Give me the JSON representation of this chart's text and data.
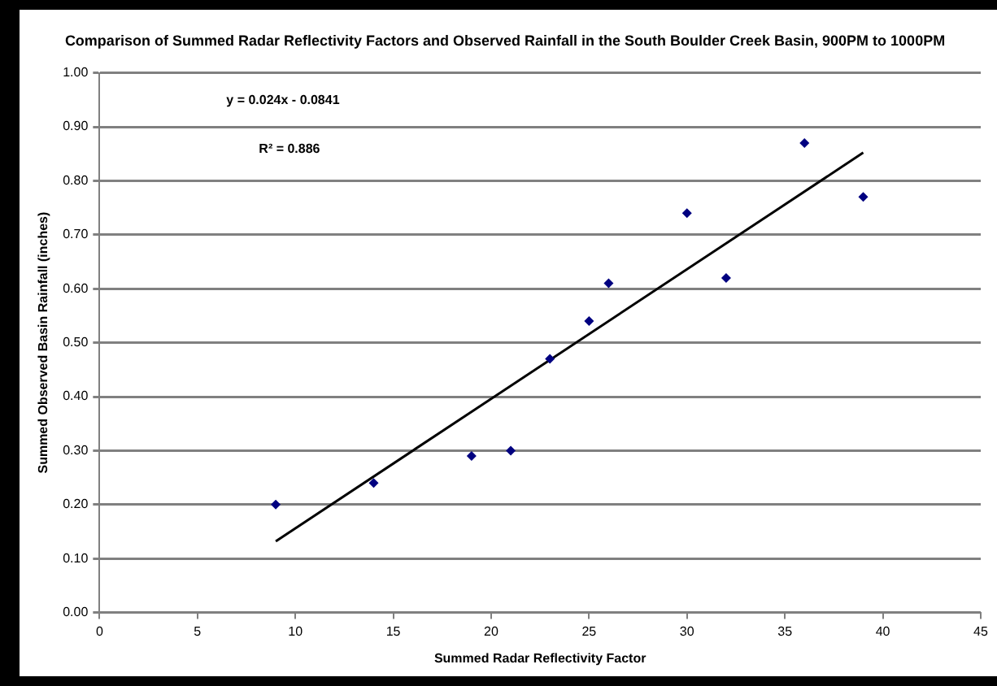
{
  "chart_data": {
    "type": "scatter",
    "title": "Comparison of Summed Radar Reflectivity Factors and Observed Rainfall in the South Boulder Creek Basin, 900PM to 1000PM",
    "xlabel": "Summed Radar Reflectivity Factor",
    "ylabel": "Summed Observed Basin Rainfall (inches)",
    "x": [
      9,
      14,
      19,
      21,
      23,
      25,
      26,
      30,
      32,
      36,
      39
    ],
    "series": [
      {
        "color": "#000080",
        "values": [
          0.2,
          0.24,
          0.29,
          0.3,
          0.47,
          0.54,
          0.61,
          0.74,
          0.62,
          0.87,
          0.77
        ],
        "marker": "diamond"
      },
      {
        "type": "line",
        "color": "#000000",
        "x": [
          9,
          39
        ],
        "values": [
          0.132,
          0.852
        ],
        "marker": "none"
      }
    ],
    "annotations": [
      "y = 0.024x - 0.0841",
      "R² = 0.886"
    ],
    "xlim": [
      0,
      45
    ],
    "xticks": [
      0,
      5,
      10,
      15,
      20,
      25,
      30,
      35,
      40,
      45
    ],
    "ylim": [
      0,
      1
    ],
    "yticks": [
      {
        "value": 0,
        "label": "0.00"
      },
      {
        "value": 0.1,
        "label": "0.10"
      },
      {
        "value": 0.2,
        "label": "0.20"
      },
      {
        "value": 0.3,
        "label": "0.30"
      },
      {
        "value": 0.4,
        "label": "0.40"
      },
      {
        "value": 0.5,
        "label": "0.50"
      },
      {
        "value": 0.6,
        "label": "0.60"
      },
      {
        "value": 0.7,
        "label": "0.70"
      },
      {
        "value": 0.8,
        "label": "0.80"
      },
      {
        "value": 0.9,
        "label": "0.90"
      },
      {
        "value": 1,
        "label": "1.00"
      }
    ],
    "grid": "y",
    "legend": false
  }
}
